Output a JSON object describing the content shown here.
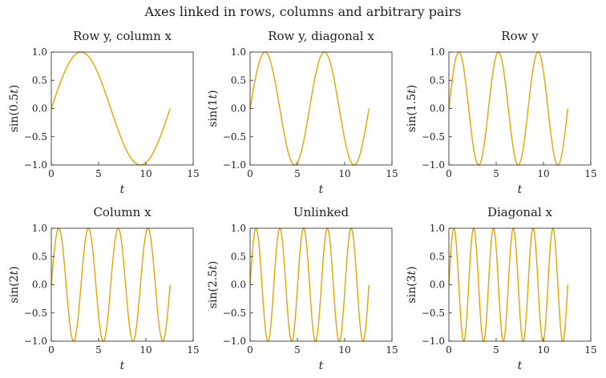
{
  "figure": {
    "title": "Axes linked in rows, columns and arbitrary pairs"
  },
  "colors": {
    "curve": "#e6a400",
    "axes": "#222222"
  },
  "chart_data": [
    {
      "type": "line",
      "title": "Row y, column x",
      "xlabel": "t",
      "ylabel": "sin(0.5t)",
      "frequency": 0.5,
      "xlim": [
        0,
        15
      ],
      "ylim": [
        -1.0,
        1.0
      ],
      "x_range": [
        0,
        12.566
      ],
      "xticks": [
        0,
        5,
        10,
        15
      ],
      "yticks": [
        -1.0,
        -0.5,
        0.0,
        0.5,
        1.0
      ],
      "xtick_labels": [
        "0",
        "5",
        "10",
        "15"
      ],
      "ytick_labels": [
        "−1.0",
        "−0.5",
        "0.0",
        "0.5",
        "1.0"
      ],
      "grid": false
    },
    {
      "type": "line",
      "title": "Row y, diagonal x",
      "xlabel": "t",
      "ylabel": "sin(1t)",
      "frequency": 1.0,
      "xlim": [
        0,
        15
      ],
      "ylim": [
        -1.0,
        1.0
      ],
      "x_range": [
        0,
        12.566
      ],
      "xticks": [
        0,
        5,
        10,
        15
      ],
      "yticks": [
        -1.0,
        -0.5,
        0.0,
        0.5,
        1.0
      ],
      "xtick_labels": [
        "0",
        "5",
        "10",
        "15"
      ],
      "ytick_labels": [
        "−1.0",
        "−0.5",
        "0.0",
        "0.5",
        "1.0"
      ],
      "grid": false
    },
    {
      "type": "line",
      "title": "Row y",
      "xlabel": "t",
      "ylabel": "sin(1.5t)",
      "frequency": 1.5,
      "xlim": [
        0,
        15
      ],
      "ylim": [
        -1.0,
        1.0
      ],
      "x_range": [
        0,
        12.566
      ],
      "xticks": [
        0,
        5,
        10,
        15
      ],
      "yticks": [
        -1.0,
        -0.5,
        0.0,
        0.5,
        1.0
      ],
      "xtick_labels": [
        "0",
        "5",
        "10",
        "15"
      ],
      "ytick_labels": [
        "−1.0",
        "−0.5",
        "0.0",
        "0.5",
        "1.0"
      ],
      "grid": false
    },
    {
      "type": "line",
      "title": "Column x",
      "xlabel": "t",
      "ylabel": "sin(2t)",
      "frequency": 2.0,
      "xlim": [
        0,
        15
      ],
      "ylim": [
        -1.0,
        1.0
      ],
      "x_range": [
        0,
        12.566
      ],
      "xticks": [
        0,
        5,
        10,
        15
      ],
      "yticks": [
        -1.0,
        -0.5,
        0.0,
        0.5,
        1.0
      ],
      "xtick_labels": [
        "0",
        "5",
        "10",
        "15"
      ],
      "ytick_labels": [
        "−1.0",
        "−0.5",
        "0.0",
        "0.5",
        "1.0"
      ],
      "grid": false
    },
    {
      "type": "line",
      "title": "Unlinked",
      "xlabel": "t",
      "ylabel": "sin(2.5t)",
      "frequency": 2.5,
      "xlim": [
        0,
        15
      ],
      "ylim": [
        -1.0,
        1.0
      ],
      "x_range": [
        0,
        12.566
      ],
      "xticks": [
        0,
        5,
        10,
        15
      ],
      "yticks": [
        -1.0,
        -0.5,
        0.0,
        0.5,
        1.0
      ],
      "xtick_labels": [
        "0",
        "5",
        "10",
        "15"
      ],
      "ytick_labels": [
        "−1.0",
        "−0.5",
        "0.0",
        "0.5",
        "1.0"
      ],
      "grid": false
    },
    {
      "type": "line",
      "title": "Diagonal x",
      "xlabel": "t",
      "ylabel": "sin(3t)",
      "frequency": 3.0,
      "xlim": [
        0,
        15
      ],
      "ylim": [
        -1.0,
        1.0
      ],
      "x_range": [
        0,
        12.566
      ],
      "xticks": [
        0,
        5,
        10,
        15
      ],
      "yticks": [
        -1.0,
        -0.5,
        0.0,
        0.5,
        1.0
      ],
      "xtick_labels": [
        "0",
        "5",
        "10",
        "15"
      ],
      "ytick_labels": [
        "−1.0",
        "−0.5",
        "0.0",
        "0.5",
        "1.0"
      ],
      "grid": false
    }
  ]
}
